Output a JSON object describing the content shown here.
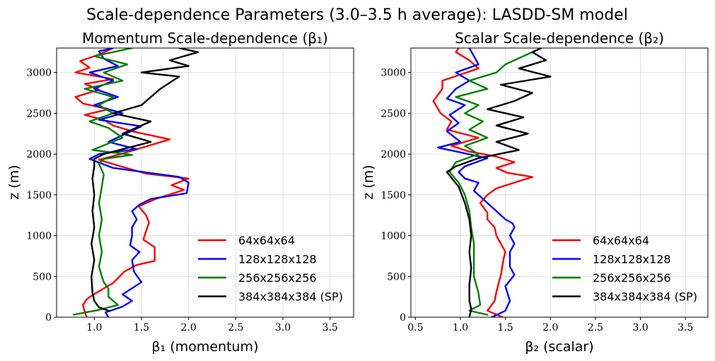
{
  "figure": {
    "suptitle": "Scale-dependence Parameters (3.0–3.5 h average): LASDD-SM model"
  },
  "chart_data": [
    {
      "type": "line",
      "title": "Momentum Scale-dependence (β₁)",
      "xlabel": "β₁ (momentum)",
      "ylabel": "z (m)",
      "xlim": [
        0.6,
        3.75
      ],
      "ylim": [
        0,
        3300
      ],
      "xticks": [
        "1.0",
        "1.5",
        "2.0",
        "2.5",
        "3.0",
        "3.5"
      ],
      "yticks": [
        "0",
        "500",
        "1000",
        "1500",
        "2000",
        "2500",
        "3000"
      ],
      "grid": true,
      "legend": "lower right",
      "series": [
        {
          "name": "64x64x64",
          "color": "#ff0000",
          "points": [
            [
              0.92,
              0
            ],
            [
              0.9,
              60
            ],
            [
              0.88,
              150
            ],
            [
              0.92,
              220
            ],
            [
              0.98,
              270
            ],
            [
              1.2,
              420
            ],
            [
              1.32,
              560
            ],
            [
              1.45,
              640
            ],
            [
              1.64,
              690
            ],
            [
              1.64,
              860
            ],
            [
              1.52,
              950
            ],
            [
              1.55,
              1060
            ],
            [
              1.58,
              1160
            ],
            [
              1.55,
              1250
            ],
            [
              1.47,
              1360
            ],
            [
              1.65,
              1450
            ],
            [
              1.95,
              1560
            ],
            [
              1.82,
              1620
            ],
            [
              2.0,
              1700
            ],
            [
              1.55,
              1760
            ],
            [
              1.25,
              1860
            ],
            [
              1.05,
              1930
            ],
            [
              1.28,
              2000
            ],
            [
              1.8,
              2180
            ],
            [
              1.4,
              2280
            ],
            [
              1.2,
              2350
            ],
            [
              1.1,
              2420
            ],
            [
              0.9,
              2480
            ],
            [
              1.15,
              2550
            ],
            [
              0.88,
              2620
            ],
            [
              0.8,
              2700
            ],
            [
              1.05,
              2790
            ],
            [
              0.9,
              2860
            ],
            [
              1.2,
              2920
            ],
            [
              0.8,
              3000
            ],
            [
              0.95,
              3060
            ],
            [
              0.85,
              3140
            ],
            [
              1.05,
              3220
            ],
            [
              1.2,
              3300
            ]
          ]
        },
        {
          "name": "128x128x128",
          "color": "#0000ff",
          "points": [
            [
              1.15,
              0
            ],
            [
              1.12,
              60
            ],
            [
              1.3,
              130
            ],
            [
              1.4,
              200
            ],
            [
              1.3,
              280
            ],
            [
              1.5,
              430
            ],
            [
              1.42,
              560
            ],
            [
              1.4,
              700
            ],
            [
              1.48,
              800
            ],
            [
              1.38,
              880
            ],
            [
              1.4,
              1000
            ],
            [
              1.4,
              1100
            ],
            [
              1.45,
              1200
            ],
            [
              1.4,
              1300
            ],
            [
              1.48,
              1380
            ],
            [
              1.6,
              1450
            ],
            [
              1.98,
              1520
            ],
            [
              2.0,
              1650
            ],
            [
              1.9,
              1720
            ],
            [
              1.2,
              1830
            ],
            [
              0.95,
              1940
            ],
            [
              1.05,
              2000
            ],
            [
              1.45,
              2060
            ],
            [
              1.15,
              2150
            ],
            [
              1.5,
              2340
            ],
            [
              1.05,
              2420
            ],
            [
              1.3,
              2500
            ],
            [
              1.0,
              2600
            ],
            [
              1.25,
              2700
            ],
            [
              1.0,
              2800
            ],
            [
              1.2,
              2900
            ],
            [
              0.95,
              3000
            ],
            [
              1.25,
              3080
            ],
            [
              1.1,
              3170
            ],
            [
              1.05,
              3260
            ],
            [
              1.2,
              3300
            ]
          ]
        },
        {
          "name": "256x256x256",
          "color": "#008000",
          "points": [
            [
              0.78,
              30
            ],
            [
              1.05,
              90
            ],
            [
              1.25,
              150
            ],
            [
              1.15,
              250
            ],
            [
              1.15,
              350
            ],
            [
              1.1,
              430
            ],
            [
              1.08,
              500
            ],
            [
              1.05,
              620
            ],
            [
              1.08,
              800
            ],
            [
              1.05,
              1000
            ],
            [
              1.08,
              1200
            ],
            [
              1.05,
              1400
            ],
            [
              1.08,
              1600
            ],
            [
              1.1,
              1750
            ],
            [
              1.05,
              1880
            ],
            [
              1.1,
              1940
            ],
            [
              1.4,
              1990
            ],
            [
              0.98,
              2050
            ],
            [
              1.3,
              2200
            ],
            [
              1.15,
              2320
            ],
            [
              0.95,
              2400
            ],
            [
              1.2,
              2500
            ],
            [
              1.05,
              2600
            ],
            [
              1.2,
              2700
            ],
            [
              0.9,
              2800
            ],
            [
              1.3,
              2900
            ],
            [
              1.1,
              3000
            ],
            [
              1.35,
              3100
            ],
            [
              1.0,
              3200
            ],
            [
              1.4,
              3300
            ]
          ]
        },
        {
          "name": "384x384x384 (SP)",
          "color": "#000000",
          "points": [
            [
              1.15,
              80
            ],
            [
              1.05,
              120
            ],
            [
              1.0,
              200
            ],
            [
              0.98,
              300
            ],
            [
              0.97,
              500
            ],
            [
              1.0,
              700
            ],
            [
              0.97,
              900
            ],
            [
              1.0,
              1100
            ],
            [
              0.98,
              1300
            ],
            [
              1.0,
              1500
            ],
            [
              0.98,
              1700
            ],
            [
              1.0,
              1850
            ],
            [
              1.0,
              1940
            ],
            [
              1.1,
              2000
            ],
            [
              1.6,
              2150
            ],
            [
              1.3,
              2250
            ],
            [
              1.6,
              2400
            ],
            [
              1.2,
              2500
            ],
            [
              1.5,
              2600
            ],
            [
              1.6,
              2700
            ],
            [
              1.7,
              2800
            ],
            [
              1.9,
              2950
            ],
            [
              1.5,
              3000
            ],
            [
              2.0,
              3080
            ],
            [
              1.8,
              3150
            ],
            [
              2.1,
              3250
            ],
            [
              1.9,
              3300
            ]
          ]
        }
      ]
    },
    {
      "type": "line",
      "title": "Scalar Scale-dependence (β₂)",
      "xlabel": "β₂ (scalar)",
      "ylabel": "z (m)",
      "xlim": [
        0.45,
        3.75
      ],
      "ylim": [
        0,
        3300
      ],
      "xticks": [
        "0.5",
        "1.0",
        "1.5",
        "2.0",
        "2.5",
        "3.0",
        "3.5"
      ],
      "yticks": [
        "0",
        "500",
        "1000",
        "1500",
        "2000",
        "2500",
        "3000"
      ],
      "grid": true,
      "legend": "lower right",
      "series": [
        {
          "name": "64x64x64",
          "color": "#ff0000",
          "points": [
            [
              1.47,
              0
            ],
            [
              1.3,
              80
            ],
            [
              1.38,
              200
            ],
            [
              1.4,
              310
            ],
            [
              1.42,
              400
            ],
            [
              1.45,
              520
            ],
            [
              1.48,
              720
            ],
            [
              1.5,
              800
            ],
            [
              1.45,
              900
            ],
            [
              1.4,
              1000
            ],
            [
              1.38,
              1100
            ],
            [
              1.3,
              1200
            ],
            [
              1.3,
              1280
            ],
            [
              1.22,
              1400
            ],
            [
              1.3,
              1500
            ],
            [
              1.4,
              1580
            ],
            [
              1.8,
              1720
            ],
            [
              1.52,
              1770
            ],
            [
              1.4,
              1830
            ],
            [
              1.6,
              1900
            ],
            [
              1.4,
              1970
            ],
            [
              1.1,
              2030
            ],
            [
              0.9,
              2100
            ],
            [
              1.2,
              2200
            ],
            [
              0.85,
              2300
            ],
            [
              0.9,
              2400
            ],
            [
              0.78,
              2500
            ],
            [
              0.7,
              2650
            ],
            [
              0.8,
              2800
            ],
            [
              0.8,
              2900
            ],
            [
              1.2,
              3050
            ],
            [
              1.1,
              3150
            ],
            [
              0.95,
              3250
            ],
            [
              0.98,
              3300
            ]
          ]
        },
        {
          "name": "128x128x128",
          "color": "#0000ff",
          "points": [
            [
              1.35,
              0
            ],
            [
              1.5,
              80
            ],
            [
              1.55,
              200
            ],
            [
              1.5,
              380
            ],
            [
              1.6,
              520
            ],
            [
              1.55,
              620
            ],
            [
              1.55,
              800
            ],
            [
              1.6,
              900
            ],
            [
              1.55,
              1000
            ],
            [
              1.6,
              1100
            ],
            [
              1.58,
              1150
            ],
            [
              1.5,
              1200
            ],
            [
              1.4,
              1300
            ],
            [
              1.3,
              1400
            ],
            [
              1.15,
              1550
            ],
            [
              1.2,
              1650
            ],
            [
              1.05,
              1700
            ],
            [
              0.98,
              1780
            ],
            [
              1.05,
              1850
            ],
            [
              1.3,
              1950
            ],
            [
              0.75,
              2080
            ],
            [
              1.0,
              2150
            ],
            [
              0.85,
              2280
            ],
            [
              0.98,
              2380
            ],
            [
              0.88,
              2480
            ],
            [
              1.05,
              2600
            ],
            [
              0.85,
              2680
            ],
            [
              0.95,
              2800
            ],
            [
              1.1,
              2900
            ],
            [
              0.95,
              3000
            ],
            [
              1.2,
              3100
            ],
            [
              1.15,
              3200
            ],
            [
              1.1,
              3300
            ]
          ]
        },
        {
          "name": "256x256x256",
          "color": "#008000",
          "points": [
            [
              1.3,
              30
            ],
            [
              1.1,
              80
            ],
            [
              1.22,
              150
            ],
            [
              1.2,
              300
            ],
            [
              1.15,
              500
            ],
            [
              1.15,
              700
            ],
            [
              1.15,
              900
            ],
            [
              1.12,
              1100
            ],
            [
              1.1,
              1300
            ],
            [
              1.05,
              1500
            ],
            [
              0.98,
              1650
            ],
            [
              0.88,
              1780
            ],
            [
              0.95,
              1900
            ],
            [
              1.2,
              2000
            ],
            [
              1.05,
              2100
            ],
            [
              1.3,
              2200
            ],
            [
              1.1,
              2300
            ],
            [
              1.25,
              2400
            ],
            [
              1.05,
              2500
            ],
            [
              1.2,
              2600
            ],
            [
              0.95,
              2700
            ],
            [
              1.3,
              2800
            ],
            [
              1.1,
              2900
            ],
            [
              1.4,
              3000
            ],
            [
              1.5,
              3100
            ],
            [
              1.7,
              3200
            ],
            [
              1.9,
              3300
            ]
          ]
        },
        {
          "name": "384x384x384 (SP)",
          "color": "#000000",
          "points": [
            [
              1.1,
              0
            ],
            [
              1.12,
              100
            ],
            [
              1.1,
              200
            ],
            [
              1.1,
              400
            ],
            [
              1.12,
              600
            ],
            [
              1.1,
              800
            ],
            [
              1.12,
              1000
            ],
            [
              1.1,
              1200
            ],
            [
              1.05,
              1400
            ],
            [
              0.98,
              1600
            ],
            [
              0.85,
              1780
            ],
            [
              0.95,
              1850
            ],
            [
              1.2,
              1950
            ],
            [
              1.65,
              2050
            ],
            [
              1.4,
              2150
            ],
            [
              1.75,
              2250
            ],
            [
              1.4,
              2350
            ],
            [
              1.7,
              2450
            ],
            [
              1.3,
              2550
            ],
            [
              1.6,
              2650
            ],
            [
              1.8,
              2750
            ],
            [
              1.45,
              2850
            ],
            [
              2.0,
              2950
            ],
            [
              1.65,
              3050
            ],
            [
              1.95,
              3150
            ],
            [
              1.8,
              3250
            ],
            [
              1.9,
              3300
            ]
          ]
        }
      ]
    }
  ]
}
